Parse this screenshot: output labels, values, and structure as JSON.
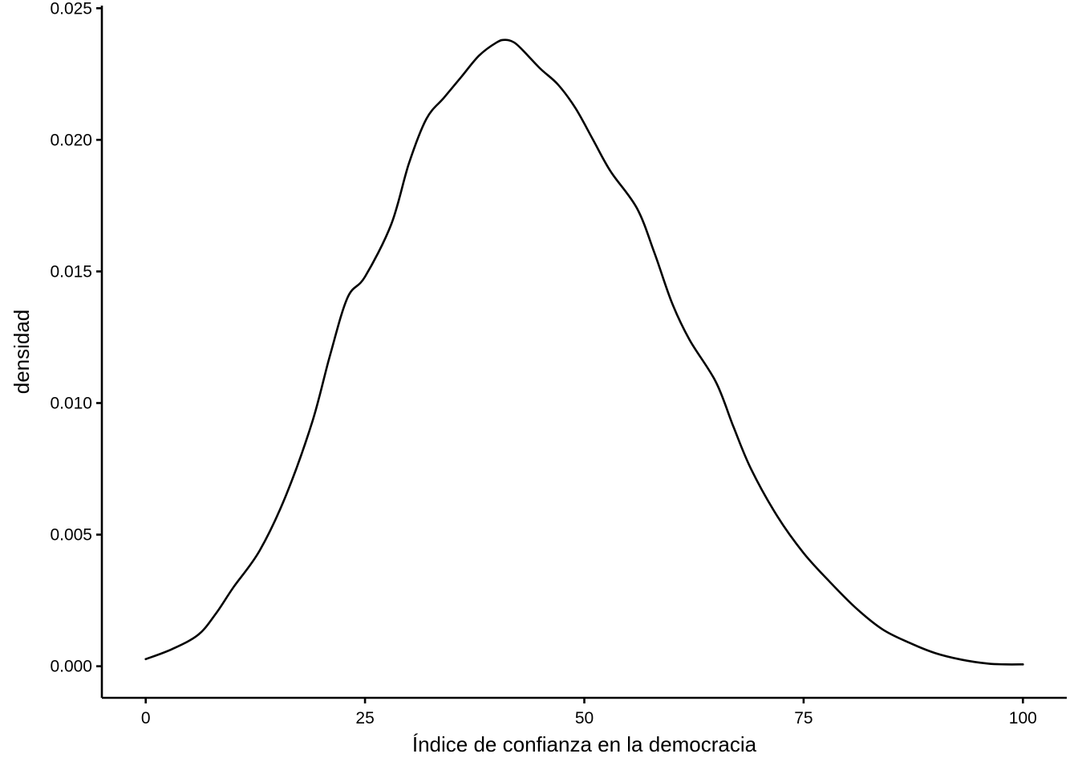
{
  "chart_data": {
    "type": "line",
    "title": "",
    "xlabel": "Índice de confianza en la democracia",
    "ylabel": "densidad",
    "xlim": [
      -5,
      105
    ],
    "ylim": [
      -0.0012,
      0.0251
    ],
    "x_ticks": [
      0,
      25,
      50,
      75,
      100
    ],
    "x_tick_labels": [
      "0",
      "25",
      "50",
      "75",
      "100"
    ],
    "y_ticks": [
      0,
      0.005,
      0.01,
      0.015,
      0.02,
      0.025
    ],
    "y_tick_labels": [
      "0.000",
      "0.005",
      "0.010",
      "0.015",
      "0.020",
      "0.025"
    ],
    "grid": false,
    "legend": "none",
    "line_color": "#000000",
    "series": [
      {
        "x": [
          0,
          3,
          6,
          8,
          10,
          13,
          16,
          19,
          21,
          23,
          25,
          28,
          30,
          32,
          34,
          36,
          38,
          40,
          41,
          42,
          43,
          45,
          47,
          49,
          51,
          53,
          56,
          58,
          60,
          62,
          65,
          67,
          69,
          72,
          75,
          78,
          81,
          84,
          87,
          90,
          93,
          96,
          98,
          100
        ],
        "y": [
          0.00027,
          0.00065,
          0.0012,
          0.002,
          0.003,
          0.0044,
          0.0065,
          0.0093,
          0.0118,
          0.014,
          0.0148,
          0.0168,
          0.0191,
          0.0208,
          0.0216,
          0.0224,
          0.0232,
          0.0237,
          0.0238,
          0.0237,
          0.0234,
          0.0227,
          0.0221,
          0.0212,
          0.02,
          0.0188,
          0.0174,
          0.0157,
          0.0138,
          0.0124,
          0.0108,
          0.0091,
          0.0075,
          0.0057,
          0.0043,
          0.0032,
          0.0022,
          0.0014,
          0.0009,
          0.0005,
          0.00025,
          0.0001,
          7e-05,
          7e-05
        ]
      }
    ]
  }
}
